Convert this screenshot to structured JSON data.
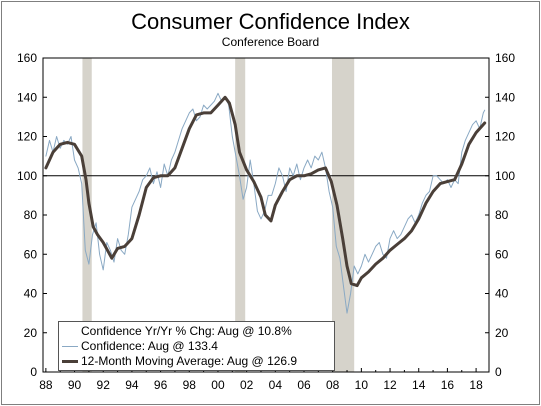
{
  "chart_data": {
    "type": "line",
    "title": "Consumer Confidence Index",
    "subtitle": "Conference Board",
    "xlabel": "",
    "ylabel": "",
    "xlim": [
      1987.8,
      2018.9
    ],
    "ylim": [
      0,
      160
    ],
    "x_ticks": [
      1988,
      1990,
      1992,
      1994,
      1996,
      1998,
      2000,
      2002,
      2004,
      2006,
      2008,
      2010,
      2012,
      2014,
      2016,
      2018
    ],
    "x_tick_labels": [
      "88",
      "90",
      "92",
      "94",
      "96",
      "98",
      "00",
      "02",
      "04",
      "06",
      "08",
      "10",
      "12",
      "14",
      "16",
      "18"
    ],
    "y_ticks": [
      0,
      20,
      40,
      60,
      80,
      100,
      120,
      140,
      160
    ],
    "y_tick_labels": [
      "0",
      "20",
      "40",
      "60",
      "80",
      "100",
      "120",
      "140",
      "160"
    ],
    "reference_line": 100,
    "recessions": [
      [
        1990.55,
        1991.2
      ],
      [
        2001.2,
        2001.9
      ],
      [
        2007.95,
        2009.5
      ]
    ],
    "legend_placement": "bottom-left",
    "legend": [
      {
        "label": "Confidence Yr/Yr % Chg: Aug @ 10.8%",
        "style": "none"
      },
      {
        "label": "Confidence: Aug @ 133.4",
        "style": "thin"
      },
      {
        "label": "12-Month Moving Average: Aug @ 126.9",
        "style": "thick"
      }
    ],
    "series": [
      {
        "name": "Confidence: Aug @ 133.4",
        "x": [
          1988.0,
          1988.25,
          1988.5,
          1988.75,
          1989.0,
          1989.25,
          1989.5,
          1989.75,
          1990.0,
          1990.25,
          1990.5,
          1990.75,
          1991.0,
          1991.25,
          1991.5,
          1991.75,
          1992.0,
          1992.25,
          1992.5,
          1992.75,
          1993.0,
          1993.25,
          1993.5,
          1993.75,
          1994.0,
          1994.25,
          1994.5,
          1994.75,
          1995.0,
          1995.25,
          1995.5,
          1995.75,
          1996.0,
          1996.25,
          1996.5,
          1996.75,
          1997.0,
          1997.25,
          1997.5,
          1997.75,
          1998.0,
          1998.25,
          1998.5,
          1998.75,
          1999.0,
          1999.25,
          1999.5,
          1999.75,
          2000.0,
          2000.25,
          2000.5,
          2000.75,
          2001.0,
          2001.25,
          2001.5,
          2001.75,
          2002.0,
          2002.25,
          2002.5,
          2002.75,
          2003.0,
          2003.25,
          2003.5,
          2003.75,
          2004.0,
          2004.25,
          2004.5,
          2004.75,
          2005.0,
          2005.25,
          2005.5,
          2005.75,
          2006.0,
          2006.25,
          2006.5,
          2006.75,
          2007.0,
          2007.25,
          2007.5,
          2007.75,
          2008.0,
          2008.25,
          2008.5,
          2008.75,
          2009.0,
          2009.25,
          2009.5,
          2009.75,
          2010.0,
          2010.25,
          2010.5,
          2010.75,
          2011.0,
          2011.25,
          2011.5,
          2011.75,
          2012.0,
          2012.25,
          2012.5,
          2012.75,
          2013.0,
          2013.25,
          2013.5,
          2013.75,
          2014.0,
          2014.25,
          2014.5,
          2014.75,
          2015.0,
          2015.25,
          2015.5,
          2015.75,
          2016.0,
          2016.25,
          2016.5,
          2016.75,
          2017.0,
          2017.25,
          2017.5,
          2017.75,
          2018.0,
          2018.25,
          2018.5,
          2018.6
        ],
        "y": [
          110,
          118,
          112,
          120,
          114,
          118,
          116,
          120,
          108,
          104,
          96,
          62,
          55,
          70,
          76,
          60,
          52,
          66,
          62,
          56,
          68,
          62,
          60,
          70,
          84,
          88,
          92,
          98,
          100,
          104,
          96,
          102,
          94,
          106,
          100,
          108,
          112,
          118,
          124,
          128,
          132,
          134,
          128,
          130,
          136,
          134,
          136,
          138,
          142,
          138,
          140,
          136,
          120,
          110,
          100,
          88,
          94,
          108,
          96,
          82,
          78,
          82,
          90,
          90,
          96,
          104,
          100,
          92,
          104,
          100,
          106,
          98,
          104,
          108,
          104,
          110,
          108,
          112,
          104,
          92,
          84,
          64,
          58,
          44,
          30,
          40,
          54,
          50,
          54,
          60,
          56,
          60,
          64,
          66,
          60,
          58,
          68,
          72,
          68,
          70,
          74,
          78,
          80,
          76,
          80,
          86,
          90,
          92,
          100,
          100,
          98,
          96,
          98,
          94,
          98,
          96,
          112,
          118,
          122,
          126,
          128,
          124,
          132,
          133.4
        ]
      },
      {
        "name": "12-Month Moving Average: Aug @ 126.9",
        "x": [
          1988.0,
          1988.5,
          1989.0,
          1989.5,
          1990.0,
          1990.5,
          1990.8,
          1991.0,
          1991.3,
          1991.6,
          1992.0,
          1992.3,
          1992.6,
          1993.0,
          1993.5,
          1994.0,
          1994.5,
          1995.0,
          1995.5,
          1996.0,
          1996.5,
          1997.0,
          1997.5,
          1998.0,
          1998.5,
          1999.0,
          1999.5,
          2000.0,
          2000.5,
          2000.8,
          2001.2,
          2001.5,
          2002.0,
          2002.5,
          2003.0,
          2003.3,
          2003.7,
          2004.0,
          2004.5,
          2005.0,
          2005.5,
          2006.0,
          2006.5,
          2007.0,
          2007.5,
          2007.9,
          2008.3,
          2008.7,
          2009.0,
          2009.3,
          2009.7,
          2010.0,
          2010.5,
          2011.0,
          2011.5,
          2012.0,
          2012.5,
          2013.0,
          2013.5,
          2014.0,
          2014.5,
          2015.0,
          2015.5,
          2016.0,
          2016.5,
          2017.0,
          2017.5,
          2018.0,
          2018.6
        ],
        "y": [
          104,
          112,
          116,
          117,
          116,
          110,
          98,
          86,
          74,
          70,
          66,
          62,
          58,
          63,
          64,
          68,
          80,
          94,
          99,
          100,
          100,
          104,
          114,
          124,
          131,
          132,
          132,
          136,
          140,
          137,
          126,
          112,
          103,
          97,
          89,
          80,
          77,
          85,
          92,
          98,
          100,
          100,
          101,
          103,
          104,
          97,
          85,
          68,
          54,
          45,
          44,
          48,
          51,
          55,
          58,
          62,
          65,
          68,
          72,
          78,
          86,
          92,
          96,
          97,
          98,
          106,
          116,
          122,
          126.9
        ]
      }
    ]
  }
}
